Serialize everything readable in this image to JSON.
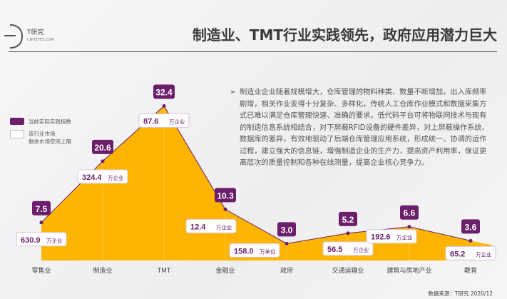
{
  "header": {
    "logo_text": "T研究",
    "logo_sub": "CNITEYES.COM",
    "title": "制造业、TMT行业实践领先，政府应用潜力巨大"
  },
  "description": "制造业企业随着规模增大，仓库管理的物料种类、数量不断增加，出入库频率剧增，相关作业变得十分复杂、多样化，传统人工仓库作业模式和数据采集方式已难以满足仓库管理快速、准确的要求。低代码平台可将物联网技术与现有的制造信息系统相结合，对下屏蔽RFID设备的硬件差异，对上屏蔽操作系统、数据库的差异，有效地驱动了后端仓库管理应用系统，形成统一、协调的运作过程，建立强大的信息链，增强制造企业的生产力，提高资产利用率，保证更高层次的质量控制和各种在线测量，提高企业核心竞争力。",
  "source": "数据来源：T研究 2020/12",
  "colors": {
    "area": "#ffb400",
    "purple": "#6b1f6b",
    "line": "#6b1f6b"
  },
  "chart_data": {
    "type": "area",
    "categories": [
      "零售业",
      "制造业",
      "TMT",
      "金融业",
      "政府",
      "交通运输业",
      "建筑与房地产业",
      "教育"
    ],
    "series": [
      {
        "name": "当前实际实践指数",
        "values": [
          7.5,
          20.6,
          32.4,
          10.3,
          3.0,
          5.2,
          6.6,
          3.6
        ],
        "labels": [
          "7.5",
          "20.6",
          "32.4",
          "10.3",
          "3.0",
          "5.2",
          "6.6",
          "3.6"
        ]
      },
      {
        "name": "该行业市场剩余市场空间上限",
        "values": [
          630.9,
          324.4,
          87.6,
          12.4,
          158.0,
          56.5,
          192.6,
          65.2
        ],
        "labels": [
          "630.9",
          "324.4",
          "87.6",
          "12.4",
          "158.0",
          "56.5",
          "192.6",
          "65.2"
        ],
        "units": [
          "万企业",
          "万企业",
          "万企业",
          "万企业",
          "万单位",
          "万企业",
          "万企业",
          "万企业"
        ]
      }
    ],
    "legend": [
      "当前实际实践指数",
      "该行业市场剩余市场空间上限"
    ],
    "legend_placement": "left",
    "legend_line2": "剩余市场空间上限",
    "legend_line1": "该行业市场"
  }
}
